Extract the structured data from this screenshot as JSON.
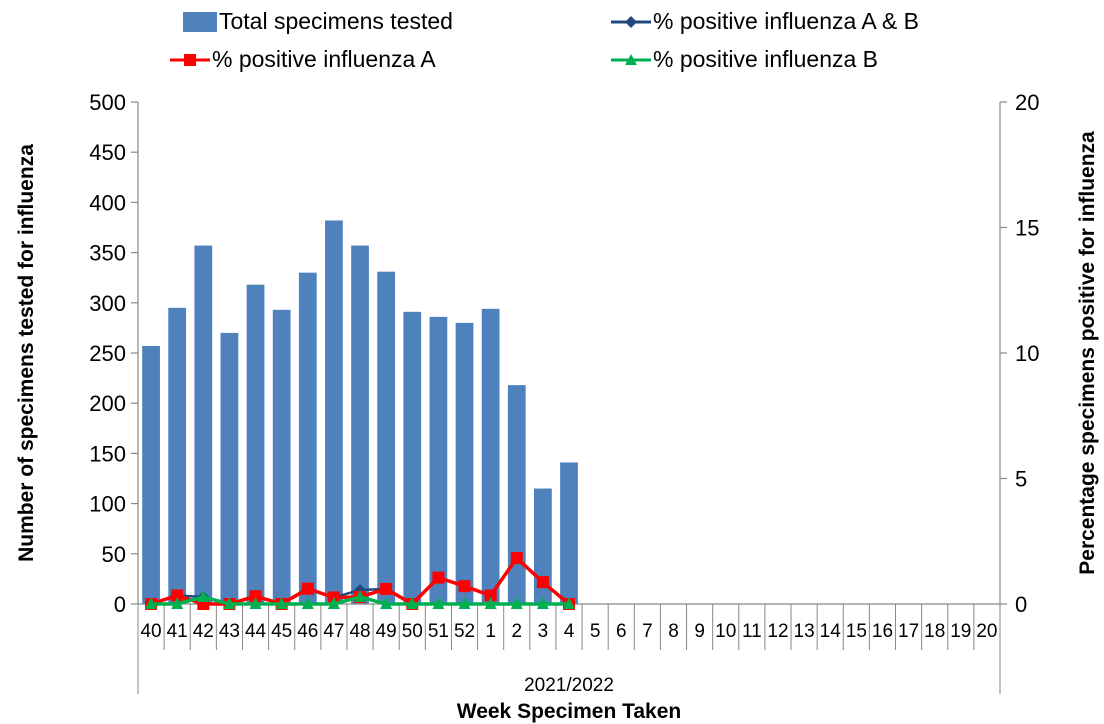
{
  "chart_data": {
    "type": "bar",
    "group_label": "2021/2022",
    "xlabel": "Week Specimen Taken",
    "ylabel": "Number of specimens tested for influenza",
    "y2label": "Percentage specimens positive for influenza",
    "ylim": [
      0,
      500
    ],
    "y2lim": [
      0,
      20
    ],
    "yticks": [
      0,
      50,
      100,
      150,
      200,
      250,
      300,
      350,
      400,
      450,
      500
    ],
    "y2ticks": [
      0,
      5,
      10,
      15,
      20
    ],
    "legend_position": "top",
    "categories": [
      "40",
      "41",
      "42",
      "43",
      "44",
      "45",
      "46",
      "47",
      "48",
      "49",
      "50",
      "51",
      "52",
      "1",
      "2",
      "3",
      "4",
      "5",
      "6",
      "7",
      "8",
      "9",
      "10",
      "11",
      "12",
      "13",
      "14",
      "15",
      "16",
      "17",
      "18",
      "19",
      "20"
    ],
    "series": [
      {
        "name": "Total specimens tested",
        "type": "bar",
        "axis": "left",
        "color": "#4F81BD",
        "values": [
          257,
          295,
          357,
          270,
          318,
          293,
          330,
          382,
          357,
          331,
          291,
          286,
          280,
          294,
          218,
          115,
          141,
          null,
          null,
          null,
          null,
          null,
          null,
          null,
          null,
          null,
          null,
          null,
          null,
          null,
          null,
          null,
          null
        ]
      },
      {
        "name": "% positive influenza A & B",
        "type": "line",
        "axis": "right",
        "color": "#1F497D",
        "marker": "diamond",
        "values": [
          0,
          0.34,
          0.28,
          0,
          0.31,
          0,
          0.61,
          0.26,
          0.56,
          0.6,
          0,
          1.05,
          0.71,
          0.34,
          1.83,
          0.87,
          0,
          null,
          null,
          null,
          null,
          null,
          null,
          null,
          null,
          null,
          null,
          null,
          null,
          null,
          null,
          null,
          null
        ]
      },
      {
        "name": "% positive influenza A",
        "type": "line",
        "axis": "right",
        "color": "#FF0000",
        "marker": "square",
        "values": [
          0,
          0.34,
          0,
          0,
          0.31,
          0,
          0.61,
          0.26,
          0.28,
          0.6,
          0,
          1.05,
          0.71,
          0.34,
          1.83,
          0.87,
          0,
          null,
          null,
          null,
          null,
          null,
          null,
          null,
          null,
          null,
          null,
          null,
          null,
          null,
          null,
          null,
          null
        ]
      },
      {
        "name": "% positive influenza B",
        "type": "line",
        "axis": "right",
        "color": "#00B050",
        "marker": "triangle",
        "values": [
          0,
          0,
          0.28,
          0,
          0,
          0,
          0,
          0,
          0.28,
          0,
          0,
          0,
          0,
          0,
          0,
          0,
          0,
          null,
          null,
          null,
          null,
          null,
          null,
          null,
          null,
          null,
          null,
          null,
          null,
          null,
          null,
          null,
          null
        ]
      }
    ]
  }
}
